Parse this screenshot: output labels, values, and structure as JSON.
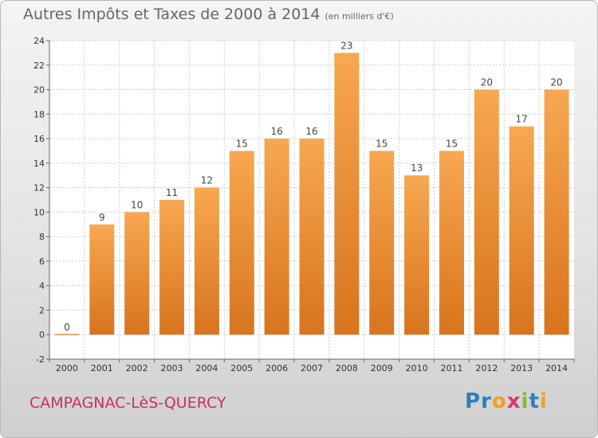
{
  "title": {
    "main": "Autres Impôts et Taxes de 2000 à 2014",
    "unit": "(en milliers d'€)"
  },
  "place": "CAMPAGNAC-LèS-QUERCY",
  "brand": {
    "letters": [
      "P",
      "r",
      "o",
      "x",
      "i",
      "t",
      "i"
    ],
    "colors": [
      "#2d7fc1",
      "#2d7fc1",
      "#f0a11a",
      "#e2336a",
      "#7bbf2a",
      "#2d7fc1",
      "#f0a11a"
    ]
  },
  "chart_data": {
    "type": "bar",
    "categories": [
      "2000",
      "2001",
      "2002",
      "2003",
      "2004",
      "2005",
      "2006",
      "2007",
      "2008",
      "2009",
      "2010",
      "2011",
      "2012",
      "2013",
      "2014"
    ],
    "values": [
      0,
      9,
      10,
      11,
      12,
      15,
      16,
      16,
      23,
      15,
      13,
      15,
      20,
      17,
      20
    ],
    "value_labels": [
      "0",
      "9",
      "10",
      "11",
      "12",
      "15",
      "16",
      "16",
      "23",
      "15",
      "13",
      "15",
      "20",
      "17",
      "20"
    ],
    "ylim": [
      -2,
      24
    ],
    "yticks": [
      -2,
      0,
      2,
      4,
      6,
      8,
      10,
      12,
      14,
      16,
      18,
      20,
      22,
      24
    ],
    "ytick_labels": [
      "-2",
      "0",
      "2",
      "4",
      "6",
      "8",
      "10",
      "12",
      "14",
      "16",
      "18",
      "20",
      "22",
      "24"
    ],
    "grid": true,
    "colors": {
      "bar_light": "#f7a850",
      "bar_dark": "#d8741e",
      "grid": "#cccccc",
      "plot_bg": "#ffffff"
    }
  }
}
